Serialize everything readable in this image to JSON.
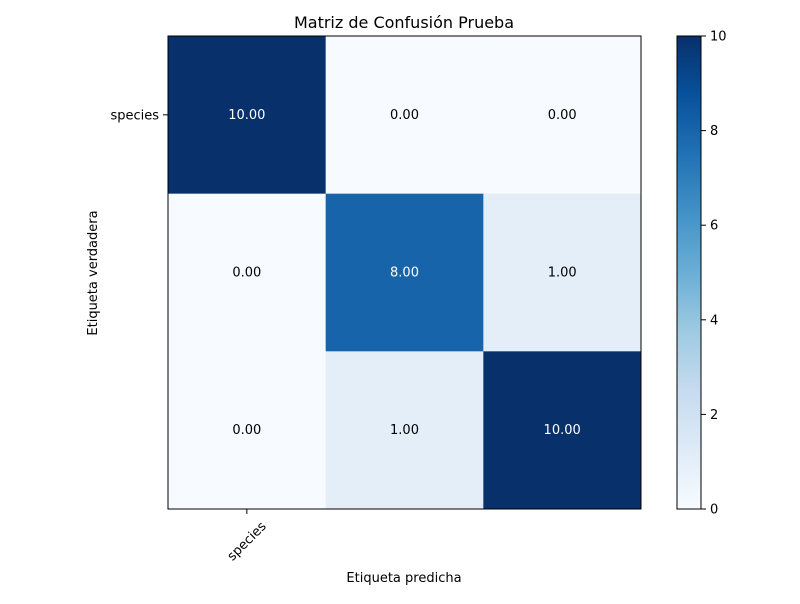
{
  "chart_data": {
    "type": "heatmap",
    "title": "Matriz de Confusión Prueba",
    "xlabel": "Etiqueta predicha",
    "ylabel": "Etiqueta verdadera",
    "x_tick_labels": [
      "species"
    ],
    "y_tick_labels": [
      "species"
    ],
    "matrix": [
      [
        10,
        0,
        0
      ],
      [
        0,
        8,
        1
      ],
      [
        0,
        1,
        10
      ]
    ],
    "cell_labels": [
      [
        "10.00",
        "0.00",
        "0.00"
      ],
      [
        "0.00",
        "8.00",
        "1.00"
      ],
      [
        "0.00",
        "1.00",
        "10.00"
      ]
    ],
    "colormap": "Blues",
    "color_range": [
      0,
      10
    ],
    "colorbar_ticks": [
      0,
      2,
      4,
      6,
      8,
      10
    ],
    "colorbar_tick_labels": [
      "0",
      "2",
      "4",
      "6",
      "8",
      "10"
    ],
    "colors": {
      "low": "#f7fbff",
      "high": "#08306b",
      "text_dark": "#000000",
      "text_light": "#ffffff"
    }
  }
}
